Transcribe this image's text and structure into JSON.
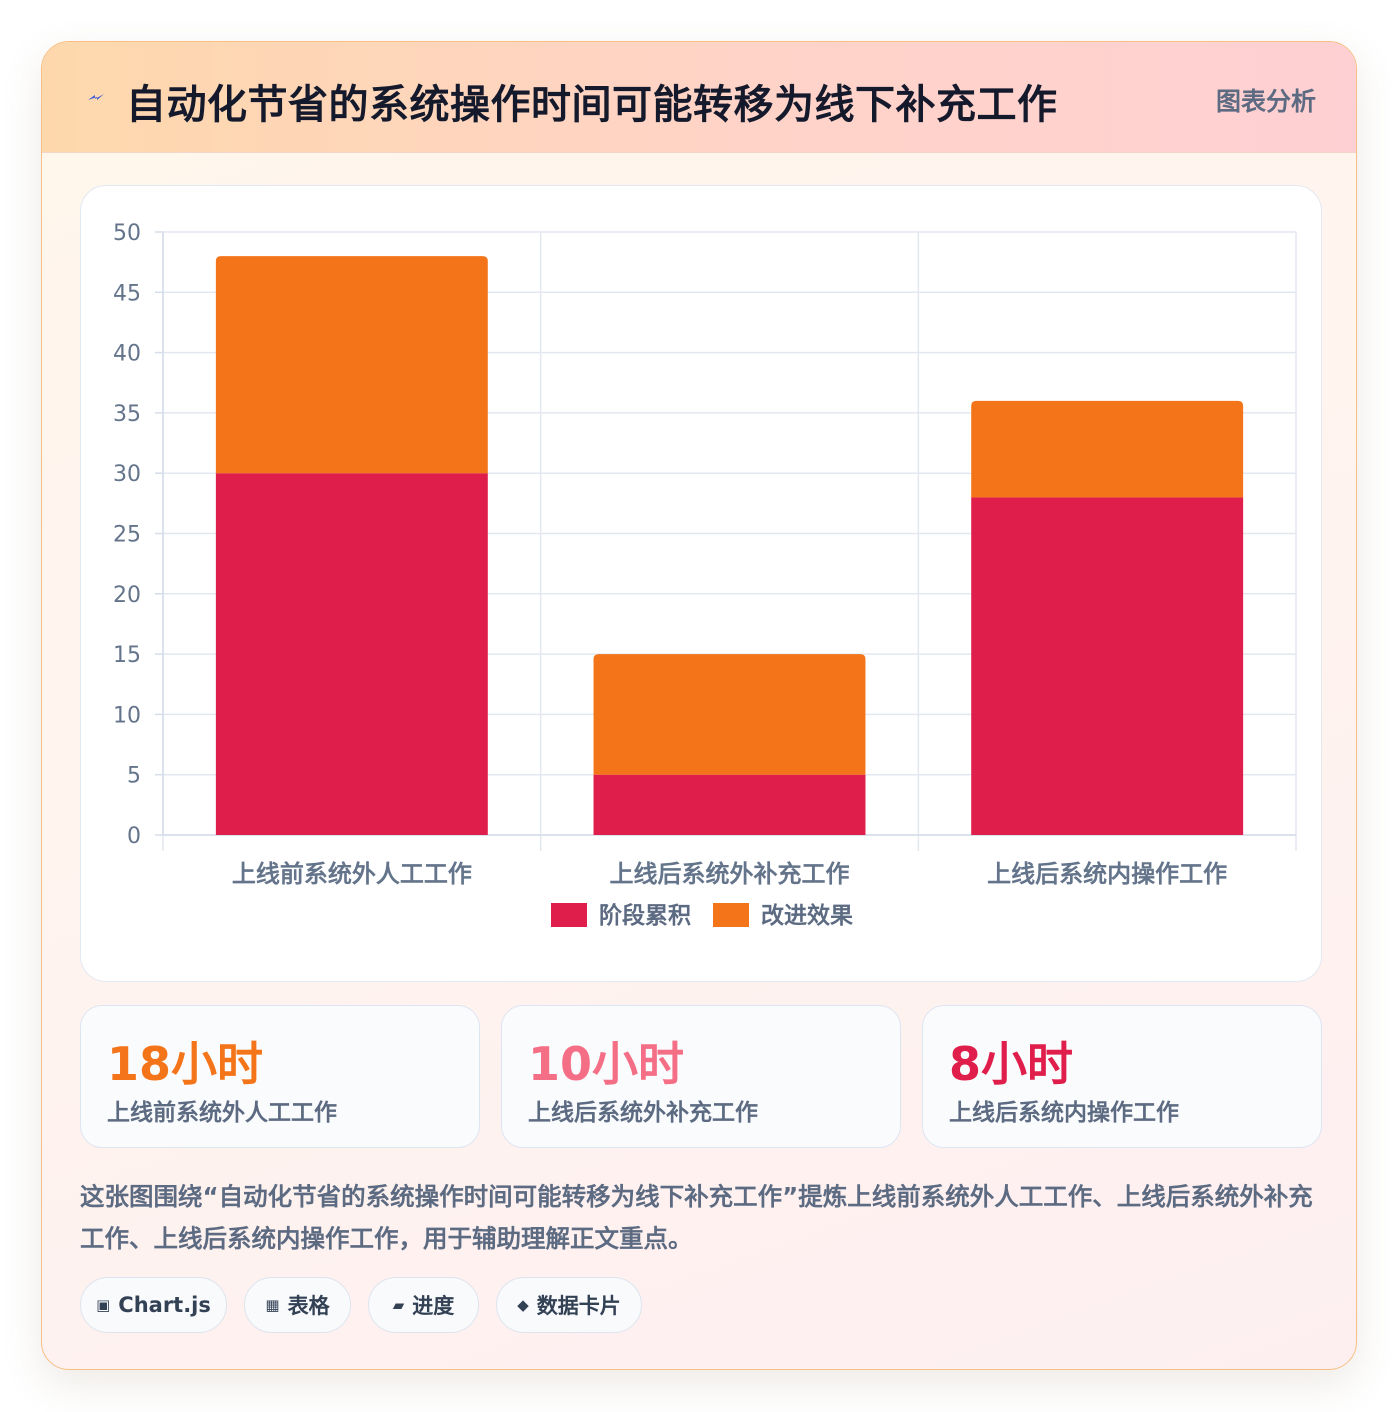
{
  "header": {
    "title": "自动化节省的系统操作时间可能转移为线下补充工作",
    "tag": "图表分析",
    "icon": "lightning-icon"
  },
  "chart_data": {
    "type": "bar",
    "stacked": true,
    "categories": [
      "上线前系统外人工工作",
      "上线后系统外补充工作",
      "上线后系统内操作工作"
    ],
    "series": [
      {
        "name": "阶段累积",
        "values": [
          30,
          5,
          28
        ],
        "color": "#e01e4b"
      },
      {
        "name": "改进效果",
        "values": [
          18,
          10,
          8
        ],
        "color": "#f47519"
      }
    ],
    "ylim": [
      0,
      50
    ],
    "yticks": [
      0,
      5,
      10,
      15,
      20,
      25,
      30,
      35,
      40,
      45,
      50
    ],
    "grid": true,
    "legend": "bottom",
    "title": "",
    "xlabel": "",
    "ylabel": ""
  },
  "stats": [
    {
      "value": "18小时",
      "label": "上线前系统外人工工作",
      "color": "#f47519"
    },
    {
      "value": "10小时",
      "label": "上线后系统外补充工作",
      "color": "#f46f86"
    },
    {
      "value": "8小时",
      "label": "上线后系统内操作工作",
      "color": "#e01e4b"
    }
  ],
  "description": "这张图围绕“自动化节省的系统操作时间可能转移为线下补充工作”提炼上线前系统外人工工作、上线后系统外补充工作、上线后系统内操作工作，用于辅助理解正文重点。",
  "pills": [
    {
      "icon": "▣",
      "label": "Chart.js"
    },
    {
      "icon": "▦",
      "label": "表格"
    },
    {
      "icon": "▰",
      "label": "进度"
    },
    {
      "icon": "◆",
      "label": "数据卡片"
    }
  ]
}
